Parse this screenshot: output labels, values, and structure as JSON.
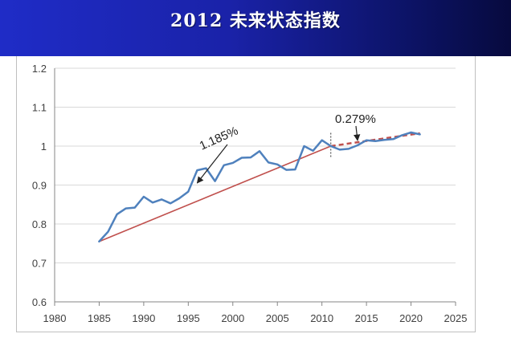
{
  "header": {
    "title": "2012  未来状态指数"
  },
  "colors": {
    "banner": "#1f2cc7",
    "series": "#4f81bd",
    "trend": "#c0504d",
    "grid": "#d9d9d9"
  },
  "chart_data": {
    "type": "line",
    "xlim": [
      1980,
      2025
    ],
    "ylim": [
      0.6,
      1.2
    ],
    "x_ticks": [
      "1980",
      "1985",
      "1990",
      "1995",
      "2000",
      "2005",
      "2010",
      "2015",
      "2020",
      "2025"
    ],
    "y_ticks": [
      "0.6",
      "0.7",
      "0.8",
      "0.9",
      "1",
      "1.1",
      "1.2"
    ],
    "grid": "horizontal",
    "series": [
      {
        "x": [
          1985,
          1986,
          1987,
          1988,
          1989,
          1990,
          1991,
          1992,
          1993,
          1994,
          1995,
          1996,
          1997,
          1998,
          1999,
          2000,
          2001,
          2002,
          2003,
          2004,
          2005,
          2006,
          2007,
          2008,
          2009,
          2010,
          2011,
          2012,
          2013,
          2014,
          2015,
          2016,
          2017,
          2018,
          2019,
          2020,
          2021
        ],
        "y": [
          0.755,
          0.78,
          0.825,
          0.84,
          0.842,
          0.87,
          0.855,
          0.863,
          0.853,
          0.866,
          0.883,
          0.938,
          0.943,
          0.91,
          0.951,
          0.957,
          0.97,
          0.971,
          0.987,
          0.958,
          0.953,
          0.939,
          0.94,
          1.0,
          0.988,
          1.015,
          1.0,
          0.991,
          0.993,
          1.002,
          1.015,
          1.013,
          1.016,
          1.018,
          1.028,
          1.035,
          1.03
        ]
      }
    ],
    "trend_lines": [
      {
        "x": [
          1985,
          2011
        ],
        "y": [
          0.755,
          1.0
        ],
        "style": "solid"
      },
      {
        "x": [
          2011,
          2021
        ],
        "y": [
          1.0,
          1.033
        ],
        "style": "dashed"
      }
    ],
    "divider_x": 2011,
    "annotations": [
      {
        "text": "1.185%",
        "target": [
          1996,
          0.897
        ]
      },
      {
        "text": "0.279%",
        "target": [
          2014,
          1.006
        ]
      }
    ]
  }
}
